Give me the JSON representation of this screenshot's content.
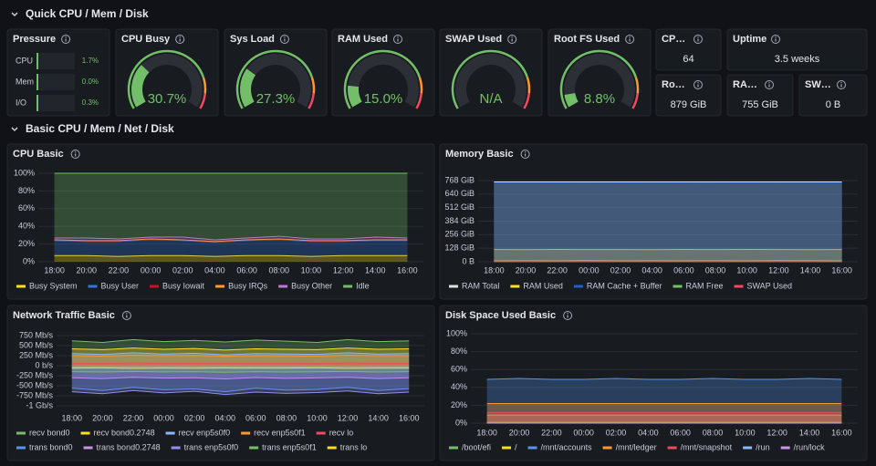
{
  "sections": [
    "Quick CPU / Mem / Disk",
    "Basic CPU / Mem / Net / Disk"
  ],
  "gauge_range": [
    0,
    100
  ],
  "pressure": {
    "title": "Pressure",
    "rows": [
      {
        "name": "CPU",
        "value": 1.7,
        "label": "1.7%"
      },
      {
        "name": "Mem",
        "value": 0.0,
        "label": "0.0%"
      },
      {
        "name": "I/O",
        "value": 0.3,
        "label": "0.3%"
      }
    ]
  },
  "gauges": [
    {
      "title": "CPU Busy",
      "value": 30.7,
      "label": "30.7%"
    },
    {
      "title": "Sys Load",
      "value": 27.3,
      "label": "27.3%"
    },
    {
      "title": "RAM Used",
      "value": 15.0,
      "label": "15.0%"
    },
    {
      "title": "SWAP Used",
      "value": null,
      "label": "N/A"
    },
    {
      "title": "Root FS Used",
      "value": 8.8,
      "label": "8.8%"
    }
  ],
  "stats": [
    {
      "title": "CP…",
      "value": "64"
    },
    {
      "title": "Uptime",
      "value": "3.5 weeks"
    },
    {
      "title": "Ro…",
      "value": "879 GiB"
    },
    {
      "title": "RA…",
      "value": "755 GiB"
    },
    {
      "title": "SW…",
      "value": "0 B"
    }
  ],
  "chart_data": [
    {
      "type": "area",
      "title": "CPU Basic",
      "stacked": true,
      "categories": [
        "18:00",
        "20:00",
        "22:00",
        "00:00",
        "02:00",
        "04:00",
        "06:00",
        "08:00",
        "10:00",
        "12:00",
        "14:00",
        "16:00"
      ],
      "ylim": [
        0,
        100
      ],
      "yticks": [
        {
          "value": 0,
          "label": "0%"
        },
        {
          "value": 20,
          "label": "20%"
        },
        {
          "value": 40,
          "label": "40%"
        },
        {
          "value": 60,
          "label": "60%"
        },
        {
          "value": 80,
          "label": "80%"
        },
        {
          "value": 100,
          "label": "100%"
        }
      ],
      "series": [
        {
          "name": "Busy System",
          "color": "#fade2a",
          "values": [
            7,
            7,
            6,
            7,
            7,
            6,
            7,
            7,
            6,
            7,
            7,
            7
          ]
        },
        {
          "name": "Busy User",
          "color": "#3274d9",
          "values": [
            17,
            16,
            17,
            18,
            17,
            16,
            17,
            18,
            17,
            16,
            17,
            17
          ]
        },
        {
          "name": "Busy Iowait",
          "color": "#c4162a",
          "values": [
            0.5,
            0.5,
            0.5,
            0.5,
            0.5,
            0.5,
            0.5,
            0.5,
            0.5,
            0.5,
            0.5,
            0.5
          ]
        },
        {
          "name": "Busy IRQs",
          "color": "#ff9830",
          "values": [
            0.3,
            0.3,
            0.3,
            0.3,
            0.3,
            0.3,
            0.3,
            0.3,
            0.3,
            0.3,
            0.3,
            0.3
          ]
        },
        {
          "name": "Busy Other",
          "color": "#b877d9",
          "values": [
            2,
            3,
            2,
            2,
            3,
            2,
            2,
            3,
            2,
            2,
            3,
            2
          ]
        },
        {
          "name": "Idle",
          "color": "#73bf69",
          "values": [
            73.2,
            73.2,
            74.2,
            72.2,
            72.2,
            75.2,
            73.2,
            71.2,
            74.2,
            74.2,
            72.2,
            73.2
          ]
        }
      ]
    },
    {
      "type": "area",
      "title": "Memory Basic",
      "stacked": false,
      "categories": [
        "18:00",
        "20:00",
        "22:00",
        "00:00",
        "02:00",
        "04:00",
        "06:00",
        "08:00",
        "10:00",
        "12:00",
        "14:00",
        "16:00"
      ],
      "ylim": [
        0,
        768
      ],
      "yticks": [
        {
          "value": 0,
          "label": "0 B"
        },
        {
          "value": 128,
          "label": "128 GiB"
        },
        {
          "value": 256,
          "label": "256 GiB"
        },
        {
          "value": 384,
          "label": "384 GiB"
        },
        {
          "value": 512,
          "label": "512 GiB"
        },
        {
          "value": 640,
          "label": "640 GiB"
        },
        {
          "value": 768,
          "label": "768 GiB"
        }
      ],
      "series": [
        {
          "name": "RAM Total",
          "color": "#e0e0e0",
          "values": [
            755,
            755,
            755,
            755,
            755,
            755,
            755,
            755,
            755,
            755,
            755,
            755
          ]
        },
        {
          "name": "RAM Used",
          "color": "#fade2a",
          "values": [
            115,
            114,
            116,
            115,
            115,
            114,
            116,
            115,
            117,
            115,
            114,
            115
          ]
        },
        {
          "name": "RAM Cache + Buffer",
          "color": "#1f60c4",
          "values": [
            745,
            744,
            745,
            743,
            745,
            744,
            745,
            744,
            745,
            743,
            744,
            745
          ]
        },
        {
          "name": "RAM Free",
          "color": "#73bf69",
          "values": [
            10,
            11,
            10,
            12,
            10,
            11,
            10,
            11,
            10,
            12,
            11,
            10
          ]
        },
        {
          "name": "SWAP Used",
          "color": "#f2495c",
          "values": [
            0,
            0,
            0,
            0,
            0,
            0,
            0,
            0,
            0,
            0,
            0,
            0
          ]
        }
      ]
    },
    {
      "type": "area",
      "title": "Network Traffic Basic",
      "stacked": false,
      "categories": [
        "18:00",
        "20:00",
        "22:00",
        "00:00",
        "02:00",
        "04:00",
        "06:00",
        "08:00",
        "10:00",
        "12:00",
        "14:00",
        "16:00"
      ],
      "ylim": [
        -1000,
        750
      ],
      "yticks": [
        {
          "value": 750,
          "label": "750 Mb/s"
        },
        {
          "value": 500,
          "label": "500 Mb/s"
        },
        {
          "value": 250,
          "label": "250 Mb/s"
        },
        {
          "value": 0,
          "label": "0 b/s"
        },
        {
          "value": -250,
          "label": "-250 Mb/s"
        },
        {
          "value": -500,
          "label": "-500 Mb/s"
        },
        {
          "value": -750,
          "label": "-750 Mb/s"
        },
        {
          "value": -1000,
          "label": "-1 Gb/s"
        }
      ],
      "series": [
        {
          "name": "recv bond0",
          "color": "#73bf69",
          "values": [
            620,
            580,
            650,
            600,
            630,
            590,
            640,
            610,
            580,
            650,
            600,
            620
          ]
        },
        {
          "name": "recv bond0.2748",
          "color": "#fade2a",
          "values": [
            420,
            400,
            440,
            410,
            430,
            390,
            420,
            410,
            400,
            440,
            410,
            420
          ]
        },
        {
          "name": "recv enp5s0f0",
          "color": "#8ab8ff",
          "values": [
            300,
            280,
            320,
            290,
            310,
            270,
            300,
            290,
            280,
            320,
            290,
            300
          ]
        },
        {
          "name": "recv enp5s0f1",
          "color": "#ff9830",
          "values": [
            250,
            240,
            260,
            250,
            255,
            235,
            250,
            245,
            240,
            260,
            250,
            250
          ]
        },
        {
          "name": "recv lo",
          "color": "#f2495c",
          "values": [
            60,
            55,
            65,
            60,
            62,
            58,
            60,
            61,
            55,
            65,
            60,
            60
          ]
        },
        {
          "name": "trans bond0",
          "color": "#5794f2",
          "values": [
            -560,
            -620,
            -540,
            -600,
            -580,
            -650,
            -560,
            -610,
            -590,
            -540,
            -620,
            -570
          ]
        },
        {
          "name": "trans bond0.2748",
          "color": "#ca95e5",
          "values": [
            -300,
            -320,
            -290,
            -310,
            -300,
            -330,
            -295,
            -315,
            -305,
            -290,
            -320,
            -300
          ]
        },
        {
          "name": "trans enp5s0f0",
          "color": "#8f8ff2",
          "values": [
            -650,
            -700,
            -620,
            -680,
            -640,
            -720,
            -660,
            -690,
            -670,
            -630,
            -700,
            -660
          ]
        },
        {
          "name": "trans enp5s0f1",
          "color": "#73bf69",
          "values": [
            -150,
            -160,
            -145,
            -155,
            -150,
            -165,
            -150,
            -158,
            -152,
            -145,
            -160,
            -150
          ]
        },
        {
          "name": "trans lo",
          "color": "#fade2a",
          "values": [
            -60,
            -55,
            -65,
            -60,
            -62,
            -58,
            -60,
            -61,
            -55,
            -65,
            -60,
            -60
          ]
        }
      ]
    },
    {
      "type": "area",
      "title": "Disk Space Used Basic",
      "stacked": false,
      "categories": [
        "18:00",
        "20:00",
        "22:00",
        "00:00",
        "02:00",
        "04:00",
        "06:00",
        "08:00",
        "10:00",
        "12:00",
        "14:00",
        "16:00"
      ],
      "ylim": [
        0,
        100
      ],
      "yticks": [
        {
          "value": 0,
          "label": "0%"
        },
        {
          "value": 20,
          "label": "20%"
        },
        {
          "value": 40,
          "label": "40%"
        },
        {
          "value": 60,
          "label": "60%"
        },
        {
          "value": 80,
          "label": "80%"
        },
        {
          "value": 100,
          "label": "100%"
        }
      ],
      "series": [
        {
          "name": "/boot/efi",
          "color": "#73bf69",
          "values": [
            1,
            1,
            1,
            1,
            1,
            1,
            1,
            1,
            1,
            1,
            1,
            1
          ]
        },
        {
          "name": "/",
          "color": "#fade2a",
          "values": [
            9,
            9,
            9,
            9,
            9,
            9,
            9,
            9,
            9,
            9,
            9,
            9
          ]
        },
        {
          "name": "/mnt/accounts",
          "color": "#5794f2",
          "values": [
            49,
            50,
            49,
            49,
            50,
            49,
            49,
            50,
            49,
            49,
            50,
            49
          ]
        },
        {
          "name": "/mnt/ledger",
          "color": "#ff9830",
          "values": [
            22,
            22,
            22,
            22,
            22,
            22,
            22,
            22,
            22,
            22,
            22,
            22
          ]
        },
        {
          "name": "/mnt/snapshot",
          "color": "#f2495c",
          "values": [
            12,
            12,
            12,
            12,
            12,
            12,
            12,
            12,
            12,
            12,
            12,
            12
          ]
        },
        {
          "name": "/run",
          "color": "#8ab8ff",
          "values": [
            0,
            0,
            0,
            0,
            0,
            0,
            0,
            0,
            0,
            0,
            0,
            0
          ]
        },
        {
          "name": "/run/lock",
          "color": "#ca95e5",
          "values": [
            0,
            0,
            0,
            0,
            0,
            0,
            0,
            0,
            0,
            0,
            0,
            0
          ]
        }
      ]
    }
  ]
}
